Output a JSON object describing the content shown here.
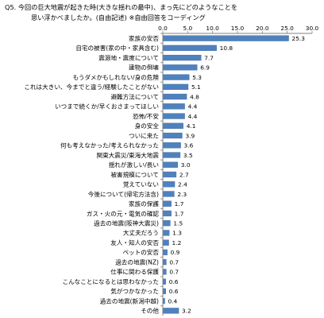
{
  "title_line1": "Q5. 今回の巨大地震が起きた時(大きな揺れの最中)、まっ先にどのようなことを",
  "title_line2": "思い浮かべましたか。(自由記述) ※自由回答をコーディング",
  "colors": {
    "bar": "#4f81bd",
    "bar_stroke": "#3a6a9f",
    "axis": "#808080"
  },
  "chart_data": {
    "type": "bar",
    "orientation": "horizontal",
    "title": "Q5. 今回の巨大地震が起きた時(大きな揺れの最中)、まっ先にどのようなことを思い浮かべましたか。(自由記述) ※自由回答をコーディング",
    "xlim": [
      0,
      30
    ],
    "xticks": [
      "0.0",
      "5.0",
      "10.0",
      "15.0",
      "20.0",
      "25.0",
      "30.0"
    ],
    "tick_values": [
      0,
      5,
      10,
      15,
      20,
      25,
      30
    ],
    "grid": false,
    "categories": [
      "家族の安否",
      "自宅の被害(家の中・家具含む)",
      "震源地・震度について",
      "建物の倒壊",
      "もうダメかもしれない/身の危険",
      "これは大きい、今までと違う/経験したことがない",
      "避難方法について",
      "いつまで続くか/早くおさまってほしい",
      "恐怖/不安",
      "身の安全",
      "ついに来た",
      "何も考えなかった/考えられなかった",
      "関東大震災/東海大地震",
      "揺れが激しい/長い",
      "被害規模について",
      "覚えていない",
      "今後について(帰宅方法含)",
      "家族の保護",
      "ガス・火の元・電気の確認",
      "過去の地震(阪神大震災)",
      "大丈夫だろう",
      "友人・知人の安否",
      "ペットの安否",
      "過去の地震(NZ)",
      "仕事に関わる保護",
      "こんなことになるとは思わなかった",
      "気がつかなかった",
      "過去の地震(新潟中越)",
      "その他"
    ],
    "values": [
      25.3,
      10.8,
      7.7,
      6.9,
      5.3,
      5.1,
      4.8,
      4.4,
      4.4,
      4.1,
      3.9,
      3.6,
      3.5,
      3.0,
      2.7,
      2.4,
      2.3,
      1.7,
      1.7,
      1.5,
      1.3,
      1.2,
      0.9,
      0.7,
      0.7,
      0.6,
      0.6,
      0.4,
      3.2
    ],
    "value_labels": [
      "25.3",
      "10.8",
      "7.7",
      "6.9",
      "5.3",
      "5.1",
      "4.8",
      "4.4",
      "4.4",
      "4.1",
      "3.9",
      "3.6",
      "3.5",
      "3.0",
      "2.7",
      "2.4",
      "2.3",
      "1.7",
      "1.7",
      "1.5",
      "1.3",
      "1.2",
      "0.9",
      "0.7",
      "0.7",
      "0.6",
      "0.6",
      "0.4",
      "3.2"
    ]
  }
}
